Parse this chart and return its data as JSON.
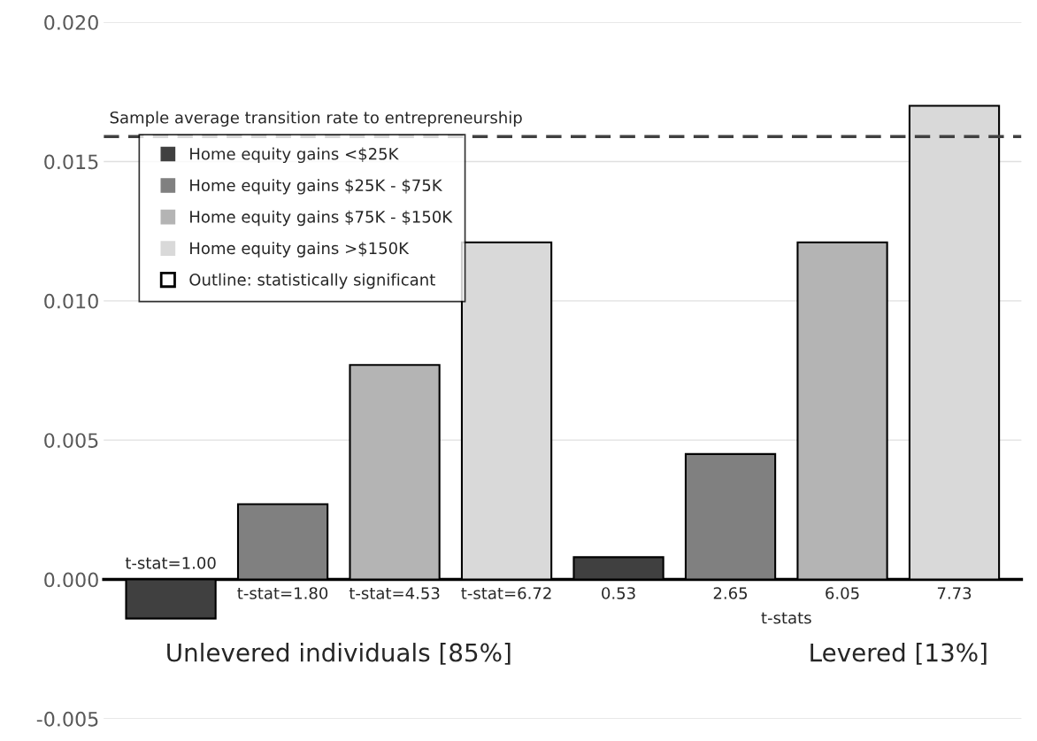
{
  "chart_data": {
    "type": "bar",
    "categories": [
      "t-stat=1.00",
      "t-stat=1.80",
      "t-stat=4.53",
      "t-stat=6.72",
      "0.53",
      "2.65",
      "6.05",
      "7.73"
    ],
    "series": [
      {
        "name": "Home equity gains <$25K",
        "color": "#404040",
        "values": [
          -0.0014,
          null,
          null,
          null,
          0.0008,
          null,
          null,
          null
        ]
      },
      {
        "name": "Home equity gains $25K - $75K",
        "color": "#808080",
        "values": [
          null,
          0.0027,
          null,
          null,
          null,
          0.0045,
          null,
          null
        ]
      },
      {
        "name": "Home equity gains $75K - $150K",
        "color": "#b4b4b4",
        "values": [
          null,
          null,
          0.0077,
          null,
          null,
          null,
          0.0121,
          null
        ]
      },
      {
        "name": "Home equity gains >$150K",
        "color": "#d9d9d9",
        "values": [
          null,
          null,
          null,
          0.0121,
          null,
          null,
          null,
          0.017
        ]
      }
    ],
    "ylim": [
      -0.005,
      0.02
    ],
    "yticks": [
      {
        "value": -0.005,
        "label": "-0.005"
      },
      {
        "value": 0.0,
        "label": "0.000"
      },
      {
        "value": 0.005,
        "label": "0.005"
      },
      {
        "value": 0.01,
        "label": "0.010"
      },
      {
        "value": 0.015,
        "label": "0.015"
      },
      {
        "value": 0.02,
        "label": "0.020"
      }
    ],
    "ref_lines": [
      {
        "axis": "y",
        "value": 0.0159,
        "label": "Sample average transition rate to entrepreneurship",
        "color": "#404040",
        "line_style": "dashed"
      }
    ],
    "annotations": [
      "Outline: statistically significant",
      "t-stats",
      "Unlevered individuals [85%]",
      "Levered [13%]"
    ],
    "grid": "y",
    "legend": "top left"
  }
}
